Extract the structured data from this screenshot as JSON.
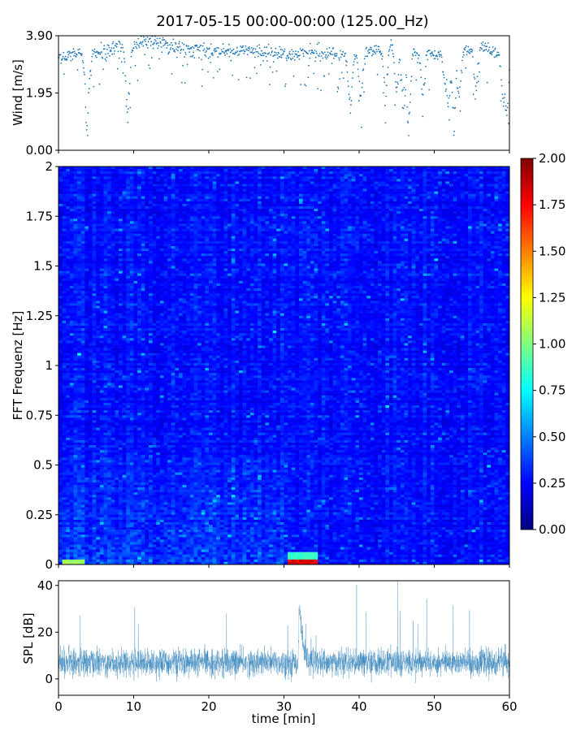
{
  "figure": {
    "title": "2017-05-15 00:00-00:00 (125.00_Hz)"
  },
  "colors": {
    "series": "#1f77b4",
    "axes": "#000000",
    "heat_stops": [
      "#00007f",
      "#0000ff",
      "#007fff",
      "#00ffff",
      "#7fff7f",
      "#ffff00",
      "#ff7f00",
      "#ff0000",
      "#7f0000"
    ]
  },
  "chart_data": [
    {
      "type": "scatter",
      "ylabel": "Wind [m/s]",
      "ylim": [
        0,
        3.9
      ],
      "yticks": [
        "0.00",
        "1.95",
        "3.90"
      ],
      "xlim": [
        0,
        60
      ],
      "x_unit": "min",
      "baseline": [
        [
          0,
          3.2
        ],
        [
          3,
          3.3
        ],
        [
          5,
          3.35
        ],
        [
          8,
          3.5
        ],
        [
          10,
          3.6
        ],
        [
          12,
          3.75
        ],
        [
          14,
          3.6
        ],
        [
          18,
          3.4
        ],
        [
          22,
          3.4
        ],
        [
          26,
          3.35
        ],
        [
          30,
          3.3
        ],
        [
          34,
          3.3
        ],
        [
          38,
          3.2
        ],
        [
          40,
          3.3
        ],
        [
          43,
          3.5
        ],
        [
          45,
          3.6
        ],
        [
          47,
          3.4
        ],
        [
          50,
          3.2
        ],
        [
          53,
          3.3
        ],
        [
          56,
          3.5
        ],
        [
          58,
          3.3
        ],
        [
          60,
          3.2
        ]
      ],
      "dips": [
        {
          "x": 3.8,
          "y": 0.6
        },
        {
          "x": 9.2,
          "y": 0.9
        },
        {
          "x": 38.8,
          "y": 1.2
        },
        {
          "x": 40.2,
          "y": 1.5
        },
        {
          "x": 43.5,
          "y": 1.7
        },
        {
          "x": 45.0,
          "y": 1.9
        },
        {
          "x": 45.8,
          "y": 1.3
        },
        {
          "x": 46.6,
          "y": 0.6
        },
        {
          "x": 48.5,
          "y": 1.6
        },
        {
          "x": 51.5,
          "y": 2.1
        },
        {
          "x": 51.9,
          "y": 1.4
        },
        {
          "x": 52.6,
          "y": 0.7
        },
        {
          "x": 53.3,
          "y": 1.5
        },
        {
          "x": 55.5,
          "y": 1.9
        },
        {
          "x": 59.2,
          "y": 1.5
        },
        {
          "x": 59.6,
          "y": 1.0
        }
      ]
    },
    {
      "type": "heatmap",
      "ylabel": "FFT Frequenz [Hz]",
      "xlim": [
        0,
        60
      ],
      "ylim": [
        0,
        2
      ],
      "yticks": [
        "0",
        "0.25",
        "0.5",
        "0.75",
        "1",
        "1.25",
        "1.5",
        "1.75",
        "2"
      ],
      "colorbar": {
        "range": [
          0,
          2
        ],
        "ticks": [
          "0.00",
          "0.25",
          "0.50",
          "0.75",
          "1.00",
          "1.25",
          "1.50",
          "1.75",
          "2.00"
        ]
      },
      "hotspots": [
        {
          "x0": 30.5,
          "x1": 34.5,
          "f0": 0.0,
          "f1": 0.03,
          "value": 1.9
        },
        {
          "x0": 30.5,
          "x1": 34.5,
          "f0": 0.03,
          "f1": 0.06,
          "value": 0.9
        },
        {
          "x0": 0.5,
          "x1": 3.5,
          "f0": 0.0,
          "f1": 0.02,
          "value": 1.1
        }
      ]
    },
    {
      "type": "line",
      "ylabel": "SPL [dB]",
      "xlabel": "time [min]",
      "xlim": [
        0,
        60
      ],
      "ylim": [
        -7,
        42
      ],
      "yticks": [
        "0",
        "20",
        "40"
      ],
      "xticks": [
        "0",
        "10",
        "20",
        "30",
        "40",
        "50",
        "60"
      ],
      "mean_level": 7,
      "spread": 4,
      "peak": {
        "x": 32.1,
        "y": 35
      }
    }
  ]
}
